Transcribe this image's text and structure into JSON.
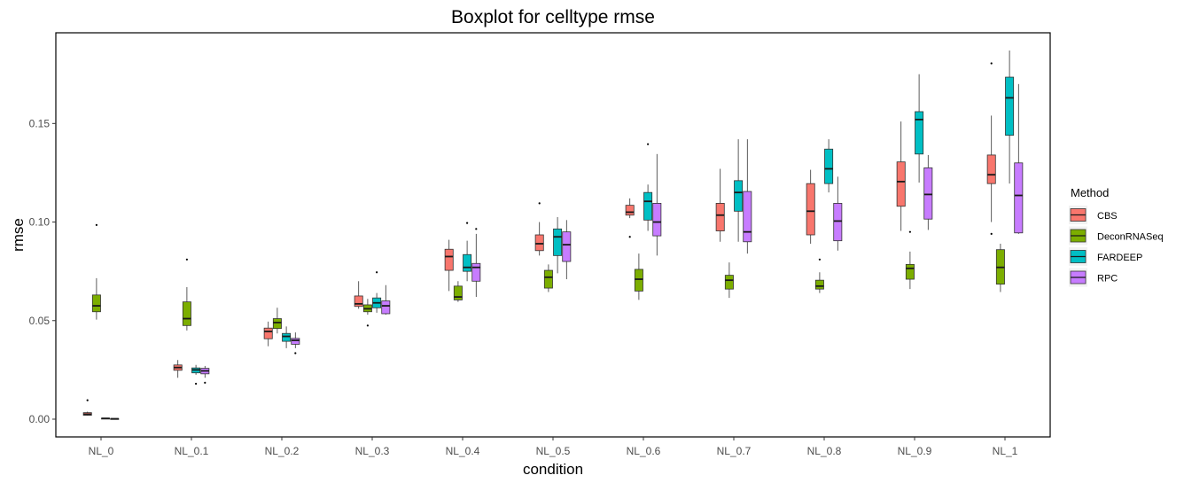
{
  "chart_data": {
    "type": "boxplot",
    "title": "Boxplot for celltype rmse",
    "xlabel": "condition",
    "ylabel": "rmse",
    "ylim": [
      -0.009,
      0.196
    ],
    "yticks": [
      0.0,
      0.05,
      0.1,
      0.15
    ],
    "ytick_labels": [
      "0.00",
      "0.05",
      "0.10",
      "0.15"
    ],
    "categories": [
      "NL_0",
      "NL_0.1",
      "NL_0.2",
      "NL_0.3",
      "NL_0.4",
      "NL_0.5",
      "NL_0.6",
      "NL_0.7",
      "NL_0.8",
      "NL_0.9",
      "NL_1"
    ],
    "legend": {
      "title": "Method",
      "position": "right"
    },
    "series": [
      {
        "name": "CBS",
        "color": "#F8766D",
        "boxes": [
          {
            "lw": 0.0018,
            "q1": 0.002,
            "med": 0.0025,
            "q3": 0.0033,
            "uw": 0.0038,
            "out": [
              0.0096
            ]
          },
          {
            "lw": 0.021,
            "q1": 0.0248,
            "med": 0.0262,
            "q3": 0.0275,
            "uw": 0.03,
            "out": []
          },
          {
            "lw": 0.037,
            "q1": 0.0408,
            "med": 0.0445,
            "q3": 0.0462,
            "uw": 0.0495,
            "out": []
          },
          {
            "lw": 0.056,
            "q1": 0.0572,
            "med": 0.0585,
            "q3": 0.0625,
            "uw": 0.07,
            "out": []
          },
          {
            "lw": 0.065,
            "q1": 0.0755,
            "med": 0.0825,
            "q3": 0.0862,
            "uw": 0.091,
            "out": []
          },
          {
            "lw": 0.083,
            "q1": 0.0855,
            "med": 0.089,
            "q3": 0.0935,
            "uw": 0.1,
            "out": [
              0.1095
            ]
          },
          {
            "lw": 0.102,
            "q1": 0.1035,
            "med": 0.105,
            "q3": 0.1085,
            "uw": 0.112,
            "out": [
              0.0925
            ]
          },
          {
            "lw": 0.09,
            "q1": 0.0955,
            "med": 0.1035,
            "q3": 0.1095,
            "uw": 0.127,
            "out": []
          },
          {
            "lw": 0.089,
            "q1": 0.0935,
            "med": 0.1055,
            "q3": 0.1195,
            "uw": 0.1265,
            "out": []
          },
          {
            "lw": 0.0955,
            "q1": 0.108,
            "med": 0.1205,
            "q3": 0.1305,
            "uw": 0.151,
            "out": []
          },
          {
            "lw": 0.1,
            "q1": 0.1195,
            "med": 0.124,
            "q3": 0.134,
            "uw": 0.154,
            "out": [
              0.094,
              0.1805
            ]
          }
        ]
      },
      {
        "name": "DeconRNASeq",
        "color": "#7CAE00",
        "boxes": [
          {
            "lw": 0.0505,
            "q1": 0.0545,
            "med": 0.0575,
            "q3": 0.063,
            "uw": 0.0715,
            "out": [
              0.0985
            ]
          },
          {
            "lw": 0.045,
            "q1": 0.0475,
            "med": 0.051,
            "q3": 0.0595,
            "uw": 0.067,
            "out": [
              0.081
            ]
          },
          {
            "lw": 0.0435,
            "q1": 0.046,
            "med": 0.049,
            "q3": 0.051,
            "uw": 0.0565,
            "out": []
          },
          {
            "lw": 0.053,
            "q1": 0.0545,
            "med": 0.056,
            "q3": 0.058,
            "uw": 0.061,
            "out": [
              0.0475
            ]
          },
          {
            "lw": 0.0595,
            "q1": 0.0605,
            "med": 0.062,
            "q3": 0.0675,
            "uw": 0.07,
            "out": []
          },
          {
            "lw": 0.0645,
            "q1": 0.0665,
            "med": 0.072,
            "q3": 0.0755,
            "uw": 0.0785,
            "out": []
          },
          {
            "lw": 0.0605,
            "q1": 0.065,
            "med": 0.071,
            "q3": 0.076,
            "uw": 0.084,
            "out": []
          },
          {
            "lw": 0.0615,
            "q1": 0.066,
            "med": 0.0705,
            "q3": 0.073,
            "uw": 0.0795,
            "out": []
          },
          {
            "lw": 0.064,
            "q1": 0.066,
            "med": 0.0675,
            "q3": 0.0705,
            "uw": 0.0745,
            "out": [
              0.081
            ]
          },
          {
            "lw": 0.066,
            "q1": 0.071,
            "med": 0.0765,
            "q3": 0.0785,
            "uw": 0.085,
            "out": [
              0.095
            ]
          },
          {
            "lw": 0.0645,
            "q1": 0.0685,
            "med": 0.077,
            "q3": 0.086,
            "uw": 0.089,
            "out": []
          }
        ]
      },
      {
        "name": "FARDEEP",
        "color": "#00BFC4",
        "boxes": [
          {
            "lw": 0.0002,
            "q1": 0.0003,
            "med": 0.0004,
            "q3": 0.0005,
            "uw": 0.0006,
            "out": []
          },
          {
            "lw": 0.0225,
            "q1": 0.0235,
            "med": 0.025,
            "q3": 0.026,
            "uw": 0.0275,
            "out": [
              0.018
            ]
          },
          {
            "lw": 0.036,
            "q1": 0.0395,
            "med": 0.042,
            "q3": 0.0435,
            "uw": 0.047,
            "out": []
          },
          {
            "lw": 0.054,
            "q1": 0.0565,
            "med": 0.059,
            "q3": 0.0615,
            "uw": 0.064,
            "out": [
              0.0745
            ]
          },
          {
            "lw": 0.07,
            "q1": 0.075,
            "med": 0.077,
            "q3": 0.0835,
            "uw": 0.0905,
            "out": [
              0.0995
            ]
          },
          {
            "lw": 0.074,
            "q1": 0.083,
            "med": 0.0925,
            "q3": 0.0965,
            "uw": 0.1025,
            "out": []
          },
          {
            "lw": 0.0955,
            "q1": 0.101,
            "med": 0.1105,
            "q3": 0.115,
            "uw": 0.119,
            "out": [
              0.1395
            ]
          },
          {
            "lw": 0.09,
            "q1": 0.1055,
            "med": 0.115,
            "q3": 0.121,
            "uw": 0.142,
            "out": []
          },
          {
            "lw": 0.115,
            "q1": 0.1195,
            "med": 0.127,
            "q3": 0.137,
            "uw": 0.142,
            "out": []
          },
          {
            "lw": 0.12,
            "q1": 0.1345,
            "med": 0.152,
            "q3": 0.156,
            "uw": 0.175,
            "out": []
          },
          {
            "lw": 0.1195,
            "q1": 0.144,
            "med": 0.163,
            "q3": 0.1735,
            "uw": 0.187,
            "out": []
          }
        ]
      },
      {
        "name": "RPC",
        "color": "#C77CFF",
        "boxes": [
          {
            "lw": 0.0001,
            "q1": 0.0001,
            "med": 0.0002,
            "q3": 0.0003,
            "uw": 0.0004,
            "out": []
          },
          {
            "lw": 0.021,
            "q1": 0.023,
            "med": 0.0245,
            "q3": 0.0258,
            "uw": 0.027,
            "out": [
              0.0185
            ]
          },
          {
            "lw": 0.036,
            "q1": 0.038,
            "med": 0.04,
            "q3": 0.041,
            "uw": 0.044,
            "out": [
              0.0335
            ]
          },
          {
            "lw": 0.053,
            "q1": 0.0535,
            "med": 0.0575,
            "q3": 0.06,
            "uw": 0.068,
            "out": []
          },
          {
            "lw": 0.062,
            "q1": 0.07,
            "med": 0.077,
            "q3": 0.079,
            "uw": 0.094,
            "out": [
              0.0965
            ]
          },
          {
            "lw": 0.071,
            "q1": 0.08,
            "med": 0.0885,
            "q3": 0.095,
            "uw": 0.101,
            "out": []
          },
          {
            "lw": 0.083,
            "q1": 0.093,
            "med": 0.1,
            "q3": 0.1095,
            "uw": 0.1345,
            "out": []
          },
          {
            "lw": 0.084,
            "q1": 0.09,
            "med": 0.095,
            "q3": 0.1155,
            "uw": 0.142,
            "out": []
          },
          {
            "lw": 0.0855,
            "q1": 0.0905,
            "med": 0.1005,
            "q3": 0.1095,
            "uw": 0.123,
            "out": []
          },
          {
            "lw": 0.096,
            "q1": 0.1015,
            "med": 0.114,
            "q3": 0.1275,
            "uw": 0.134,
            "out": []
          },
          {
            "lw": 0.094,
            "q1": 0.0945,
            "med": 0.1135,
            "q3": 0.13,
            "uw": 0.17,
            "out": []
          }
        ]
      }
    ]
  }
}
